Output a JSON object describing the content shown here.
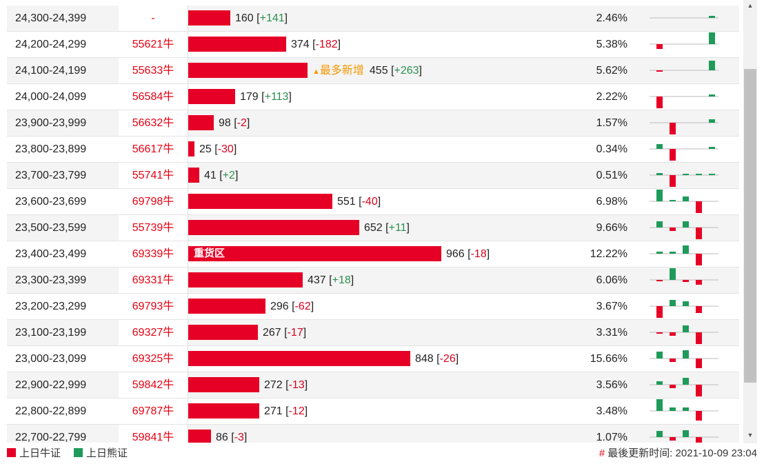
{
  "colors": {
    "bull": "#e60026",
    "bear": "#1f9a5a"
  },
  "bar_scale_max": 966,
  "rows": [
    {
      "range": "24,300-24,399",
      "code": "-",
      "value": 160,
      "change_text": "+141",
      "change_sign": "pos",
      "pct": "2.46%",
      "tag": "",
      "hot": "",
      "spark": [
        0,
        0,
        0,
        0,
        0.2,
        1
      ]
    },
    {
      "range": "24,200-24,299",
      "code": "55621牛",
      "value": 374,
      "change_text": "-182",
      "change_sign": "neg",
      "pct": "5.38%",
      "tag": "",
      "hot": "",
      "spark": [
        -0.4,
        0,
        0,
        0,
        1,
        -0.3
      ]
    },
    {
      "range": "24,100-24,199",
      "code": "55633牛",
      "value": 455,
      "change_text": "+263",
      "change_sign": "pos",
      "pct": "5.62%",
      "tag": "",
      "hot": "最多新增",
      "spark": [
        -0.1,
        0,
        0,
        0,
        0.8,
        1
      ]
    },
    {
      "range": "24,000-24,099",
      "code": "56584牛",
      "value": 179,
      "change_text": "+113",
      "change_sign": "pos",
      "pct": "2.22%",
      "tag": "",
      "hot": "",
      "spark": [
        -1,
        0,
        0,
        0,
        0.15,
        0.2
      ]
    },
    {
      "range": "23,900-23,999",
      "code": "56632牛",
      "value": 98,
      "change_text": "-2",
      "change_sign": "neg",
      "pct": "1.57%",
      "tag": "",
      "hot": "",
      "spark": [
        0,
        -1,
        0,
        0,
        0.3,
        0.05
      ]
    },
    {
      "range": "23,800-23,899",
      "code": "56617牛",
      "value": 25,
      "change_text": "-30",
      "change_sign": "neg",
      "pct": "0.34%",
      "tag": "",
      "hot": "",
      "spark": [
        0.4,
        -1,
        0,
        0,
        0.2,
        -0.1
      ]
    },
    {
      "range": "23,700-23,799",
      "code": "55741牛",
      "value": 41,
      "change_text": "+2",
      "change_sign": "pos",
      "pct": "0.51%",
      "tag": "",
      "hot": "",
      "spark": [
        0.2,
        -1,
        0.05,
        0.05,
        0.05,
        0.05
      ]
    },
    {
      "range": "23,600-23,699",
      "code": "69798牛",
      "value": 551,
      "change_text": "-40",
      "change_sign": "neg",
      "pct": "6.98%",
      "tag": "",
      "hot": "",
      "spark": [
        1,
        0.05,
        0.4,
        -1,
        0,
        -0.1
      ]
    },
    {
      "range": "23,500-23,599",
      "code": "55739牛",
      "value": 652,
      "change_text": "+11",
      "change_sign": "pos",
      "pct": "9.66%",
      "tag": "",
      "hot": "",
      "spark": [
        0.5,
        -0.3,
        0.5,
        -1,
        0,
        0.05
      ]
    },
    {
      "range": "23,400-23,499",
      "code": "69339牛",
      "value": 966,
      "change_text": "-18",
      "change_sign": "neg",
      "pct": "12.22%",
      "tag": "重货区",
      "hot": "",
      "spark": [
        0.2,
        0.2,
        0.7,
        -1,
        0,
        -0.1
      ]
    },
    {
      "range": "23,300-23,399",
      "code": "69331牛",
      "value": 437,
      "change_text": "+18",
      "change_sign": "pos",
      "pct": "6.06%",
      "tag": "",
      "hot": "",
      "spark": [
        -0.1,
        1,
        -0.2,
        -0.4,
        0,
        0.05
      ]
    },
    {
      "range": "23,200-23,299",
      "code": "69793牛",
      "value": 296,
      "change_text": "-62",
      "change_sign": "neg",
      "pct": "3.67%",
      "tag": "",
      "hot": "",
      "spark": [
        -1,
        0.5,
        0.4,
        -0.6,
        0,
        -0.2
      ]
    },
    {
      "range": "23,100-23,199",
      "code": "69327牛",
      "value": 267,
      "change_text": "-17",
      "change_sign": "neg",
      "pct": "3.31%",
      "tag": "",
      "hot": "",
      "spark": [
        -0.1,
        -0.3,
        0.6,
        -1,
        0,
        -0.2
      ]
    },
    {
      "range": "23,000-23,099",
      "code": "69325牛",
      "value": 848,
      "change_text": "-26",
      "change_sign": "neg",
      "pct": "15.66%",
      "tag": "",
      "hot": "",
      "spark": [
        0.6,
        -0.3,
        0.7,
        -0.8,
        0,
        -0.2
      ]
    },
    {
      "range": "22,900-22,999",
      "code": "59842牛",
      "value": 272,
      "change_text": "-13",
      "change_sign": "neg",
      "pct": "3.56%",
      "tag": "",
      "hot": "",
      "spark": [
        0.3,
        -0.3,
        0.6,
        -1,
        0,
        -0.2
      ]
    },
    {
      "range": "22,800-22,899",
      "code": "69787牛",
      "value": 271,
      "change_text": "-12",
      "change_sign": "neg",
      "pct": "3.48%",
      "tag": "",
      "hot": "",
      "spark": [
        1,
        0.3,
        0.3,
        -0.8,
        0,
        -0.1
      ]
    },
    {
      "range": "22,700-22,799",
      "code": "59841牛",
      "value": 86,
      "change_text": "-3",
      "change_sign": "neg",
      "pct": "1.07%",
      "tag": "",
      "hot": "",
      "spark": [
        0.5,
        -0.3,
        0.6,
        -0.6,
        0,
        -0.1
      ]
    }
  ],
  "footer": {
    "legend_bull": "上日牛证",
    "legend_bear": "上日熊证",
    "update_label": "最後更新时间: 2021-10-09 23:04"
  }
}
